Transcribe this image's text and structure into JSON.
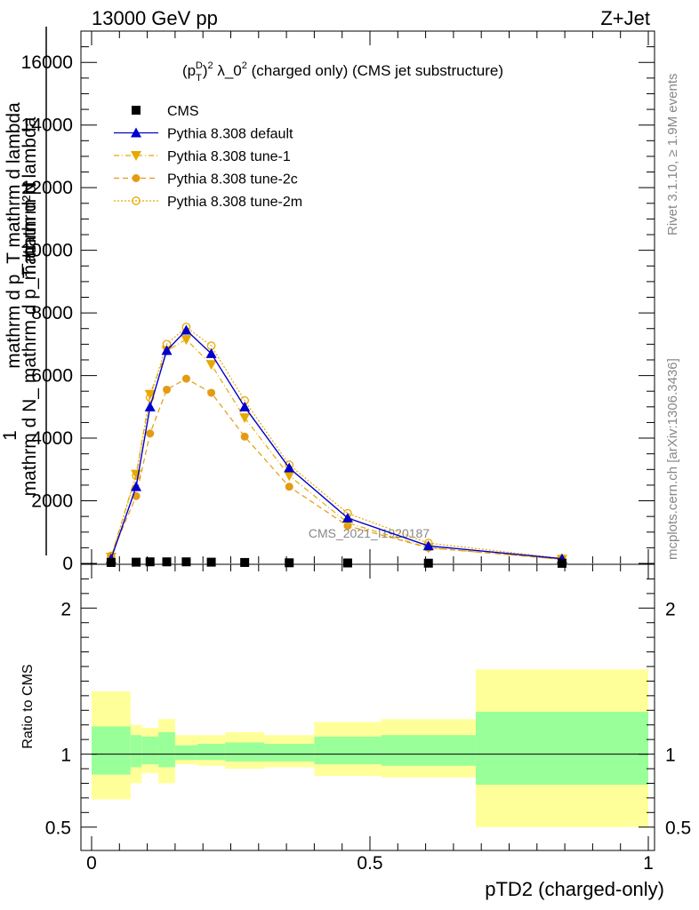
{
  "header": {
    "energy_label": "13000 GeV pp",
    "process_label": "Z+Jet"
  },
  "side_labels": {
    "rivet": "Rivet 3.1.10, ≥ 1.9M events",
    "mcplots": "mcplots.cern.ch [arXiv:1306.3436]"
  },
  "watermark": "CMS_2021_I1920187",
  "colors": {
    "cms": "#000000",
    "default": "#0000cc",
    "tune": "#e8a800",
    "tune2c": "#e39b12",
    "band_inner": "#99ff99",
    "band_outer": "#ffff99"
  },
  "chart_data": [
    {
      "type": "line",
      "title": "(p_T^D)^2 λ_0^2 (charged only) (CMS jet substructure)",
      "title_parts": {
        "p": "(p",
        "sub": "T",
        "sup1": "D",
        "close": ")",
        "sup2": "2",
        "lambda": " λ_0",
        "sup3": "2",
        "rest": " (charged only) (CMS jet substructure)"
      },
      "ylabel": "1 / mathrm d N_ mathrm d N / mathrm d p_T mathrm d lambda",
      "ylabel_parts": {
        "num_lines": [
          "mathrm d²N"
        ],
        "num_full": "mathrm d²N",
        "one": "1",
        "den1": "mathrm d N_ mathrm d p_T mathrm d lambda",
        "den2": "mathrm d p_T mathrm d lambda"
      },
      "ylim": [
        0,
        17000
      ],
      "y_ticks": [
        0,
        2000,
        4000,
        6000,
        8000,
        10000,
        12000,
        14000,
        16000
      ],
      "y_tick_labels": [
        "0",
        "2000",
        "4000",
        "6000",
        "8000",
        "10000",
        "12000",
        "14000",
        "16000"
      ],
      "xlim": [
        0,
        1
      ],
      "legend_position": "top-left",
      "series": [
        {
          "name": "CMS",
          "marker": "square",
          "x": [
            0.035,
            0.08,
            0.105,
            0.135,
            0.17,
            0.215,
            0.275,
            0.355,
            0.46,
            0.605,
            0.845
          ],
          "y": [
            30,
            40,
            50,
            50,
            50,
            40,
            30,
            20,
            15,
            8,
            3
          ]
        },
        {
          "name": "Pythia 8.308 default",
          "marker": "triangle-up",
          "style": "solid",
          "x": [
            0.035,
            0.08,
            0.105,
            0.135,
            0.17,
            0.215,
            0.275,
            0.355,
            0.46,
            0.605,
            0.845
          ],
          "y": [
            150,
            2450,
            5000,
            6800,
            7450,
            6700,
            5000,
            3050,
            1450,
            560,
            150
          ]
        },
        {
          "name": "Pythia 8.308 tune-1",
          "marker": "triangle-down",
          "style": "dashdot",
          "x": [
            0.035,
            0.08,
            0.105,
            0.135,
            0.17,
            0.215,
            0.275,
            0.355,
            0.46,
            0.605,
            0.845
          ],
          "y": [
            200,
            2850,
            5400,
            6800,
            7150,
            6350,
            4650,
            2800,
            1300,
            500,
            130
          ]
        },
        {
          "name": "Pythia 8.308 tune-2c",
          "marker": "circle",
          "style": "dashed",
          "x": [
            0.035,
            0.08,
            0.105,
            0.135,
            0.17,
            0.215,
            0.275,
            0.355,
            0.46,
            0.605,
            0.845
          ],
          "y": [
            250,
            2150,
            4150,
            5550,
            5900,
            5450,
            4050,
            2450,
            1200,
            500,
            130
          ]
        },
        {
          "name": "Pythia 8.308 tune-2m",
          "marker": "circle-open",
          "style": "dotted",
          "x": [
            0.035,
            0.08,
            0.105,
            0.135,
            0.17,
            0.215,
            0.275,
            0.355,
            0.46,
            0.605,
            0.845
          ],
          "y": [
            180,
            2800,
            5300,
            7000,
            7550,
            6950,
            5200,
            3150,
            1600,
            650,
            160
          ]
        }
      ]
    },
    {
      "type": "area",
      "ylabel": "Ratio to CMS",
      "xlabel": "pTD2 (charged-only)",
      "xlim": [
        0,
        1
      ],
      "ylim": [
        0.34,
        2.3
      ],
      "x_ticks": [
        0,
        0.5,
        1
      ],
      "x_tick_labels": [
        "0",
        "0.5",
        "1"
      ],
      "y_ticks": [
        0.5,
        1,
        2
      ],
      "y_tick_labels": [
        "0.5",
        "1",
        "2"
      ],
      "reference_line": 1,
      "bins": [
        {
          "x0": 0.0,
          "x1": 0.07,
          "inner": [
            0.86,
            1.19
          ],
          "outer": [
            0.69,
            1.43
          ]
        },
        {
          "x0": 0.07,
          "x1": 0.09,
          "inner": [
            0.91,
            1.13
          ],
          "outer": [
            0.8,
            1.2
          ]
        },
        {
          "x0": 0.09,
          "x1": 0.12,
          "inner": [
            0.93,
            1.12
          ],
          "outer": [
            0.87,
            1.18
          ]
        },
        {
          "x0": 0.12,
          "x1": 0.15,
          "inner": [
            0.91,
            1.15
          ],
          "outer": [
            0.8,
            1.24
          ]
        },
        {
          "x0": 0.15,
          "x1": 0.19,
          "inner": [
            0.96,
            1.06
          ],
          "outer": [
            0.93,
            1.13
          ]
        },
        {
          "x0": 0.19,
          "x1": 0.24,
          "inner": [
            0.96,
            1.07
          ],
          "outer": [
            0.92,
            1.13
          ]
        },
        {
          "x0": 0.24,
          "x1": 0.31,
          "inner": [
            0.95,
            1.08
          ],
          "outer": [
            0.9,
            1.15
          ]
        },
        {
          "x0": 0.31,
          "x1": 0.4,
          "inner": [
            0.95,
            1.07
          ],
          "outer": [
            0.91,
            1.13
          ]
        },
        {
          "x0": 0.4,
          "x1": 0.52,
          "inner": [
            0.93,
            1.12
          ],
          "outer": [
            0.85,
            1.22
          ]
        },
        {
          "x0": 0.52,
          "x1": 0.69,
          "inner": [
            0.92,
            1.13
          ],
          "outer": [
            0.84,
            1.24
          ]
        },
        {
          "x0": 0.69,
          "x1": 1.0,
          "inner": [
            0.79,
            1.29
          ],
          "outer": [
            0.5,
            1.58
          ]
        }
      ]
    }
  ]
}
